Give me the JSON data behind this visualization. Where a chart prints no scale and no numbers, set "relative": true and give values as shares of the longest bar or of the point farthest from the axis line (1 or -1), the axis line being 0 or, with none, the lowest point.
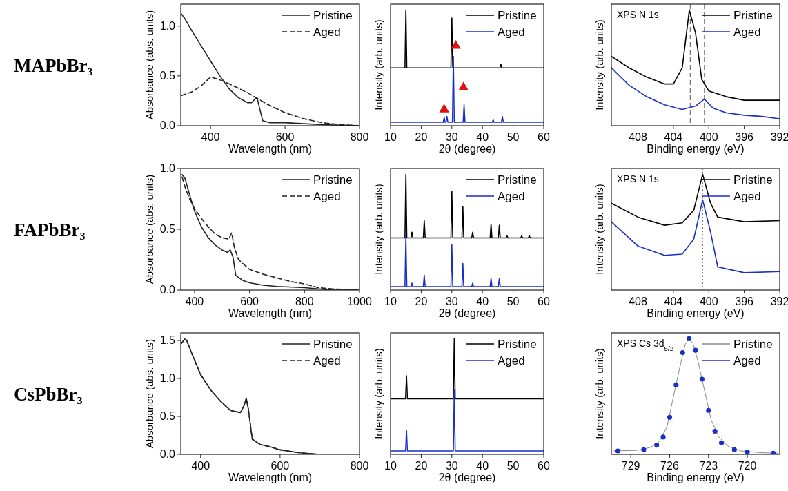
{
  "chart_data": [
    {
      "type": "line",
      "title": "MAPbBr₃",
      "xlabel": "Wavelength (nm)",
      "ylabel": "Absorbance (abs. units)",
      "xlim": [
        320,
        800
      ],
      "xticks": [
        400,
        600,
        800
      ],
      "ylim": [
        0,
        1.22
      ],
      "yticks": [
        {
          "value": 0,
          "label": "0.0"
        },
        {
          "value": 0.5,
          "label": "0.5"
        },
        {
          "value": 1,
          "label": "1.0"
        }
      ],
      "legend": "top right",
      "series": [
        {
          "name": "Pristine",
          "color": "#222222",
          "line_style": "solid",
          "x": [
            320,
            330,
            350,
            375,
            400,
            425,
            450,
            475,
            500,
            510,
            520,
            525,
            530,
            540,
            560,
            600,
            650,
            700,
            800
          ],
          "values": [
            1.13,
            1.08,
            0.95,
            0.8,
            0.65,
            0.5,
            0.37,
            0.28,
            0.23,
            0.23,
            0.27,
            0.28,
            0.2,
            0.05,
            0.03,
            0.03,
            0.02,
            0.01,
            0
          ]
        },
        {
          "name": "Aged",
          "color": "#222222",
          "line_style": "dashed",
          "x": [
            320,
            350,
            375,
            400,
            425,
            450,
            500,
            550,
            600,
            650,
            700,
            750,
            800
          ],
          "values": [
            0.3,
            0.34,
            0.4,
            0.49,
            0.46,
            0.42,
            0.33,
            0.22,
            0.13,
            0.07,
            0.03,
            0.01,
            0
          ]
        }
      ]
    },
    {
      "type": "line",
      "xlabel": "2θ (degree)",
      "ylabel": "Intensity (arb. units)",
      "xlim": [
        10,
        60
      ],
      "xticks": [
        10,
        20,
        30,
        40,
        50,
        60
      ],
      "relative": true,
      "tick_labels": "x",
      "legend": "top right",
      "series": [
        {
          "name": "Pristine",
          "color": "#000000",
          "x": [
            10,
            14.7,
            15,
            15.3,
            29.7,
            30,
            30.3,
            45.7,
            46,
            46.3,
            60
          ],
          "values": [
            0.5,
            0.5,
            1.0,
            0.5,
            0.5,
            0.93,
            0.5,
            0.5,
            0.53,
            0.5,
            0.5
          ]
        },
        {
          "name": "Aged",
          "color": "#1a2fc8",
          "x": [
            10,
            27.2,
            27.5,
            27.8,
            28.1,
            28.4,
            28.7,
            30.2,
            30.5,
            30.8,
            33.7,
            34,
            34.3,
            43.2,
            43.5,
            43.8,
            46.2,
            46.5,
            46.8,
            60
          ],
          "values": [
            0.03,
            0.03,
            0.07,
            0.03,
            0.03,
            0.08,
            0.03,
            0.03,
            0.6,
            0.03,
            0.03,
            0.18,
            0.03,
            0.03,
            0.05,
            0.03,
            0.03,
            0.08,
            0.03,
            0.03
          ]
        },
        {
          "type": "scatter",
          "marker": "triangle",
          "color": "#e01010",
          "x": [
            27.5,
            31.3,
            33.8
          ],
          "values": [
            0.14,
            0.69,
            0.33
          ]
        }
      ]
    },
    {
      "type": "line",
      "xlabel": "Binding energy (eV)",
      "ylabel": "Intensity (arb. units)",
      "xlim": [
        411,
        392
      ],
      "xticks": [
        408,
        404,
        400,
        396,
        392
      ],
      "relative": true,
      "tick_labels": "x",
      "legend": "top right",
      "annotations": [
        "XPS N 1s"
      ],
      "ref_lines": [
        {
          "axis": "x",
          "value": 402.1,
          "line_style": "dashed",
          "color": "#555555"
        },
        {
          "axis": "x",
          "value": 400.5,
          "line_style": "dashed",
          "color": "#555555"
        }
      ],
      "series": [
        {
          "name": "Pristine",
          "color": "#000000",
          "x": [
            411,
            409,
            407,
            405,
            404,
            403,
            402.2,
            401.5,
            400.8,
            400,
            398,
            396,
            394,
            392
          ],
          "values": [
            0.6,
            0.5,
            0.42,
            0.36,
            0.36,
            0.5,
            1.0,
            0.8,
            0.4,
            0.3,
            0.25,
            0.22,
            0.22,
            0.22
          ]
        },
        {
          "name": "Aged",
          "color": "#1a2fc8",
          "x": [
            411,
            409,
            407,
            405,
            403,
            401.5,
            400.5,
            399.5,
            398,
            396,
            394,
            392
          ],
          "values": [
            0.5,
            0.35,
            0.25,
            0.18,
            0.14,
            0.17,
            0.23,
            0.15,
            0.11,
            0.09,
            0.08,
            0.06
          ]
        }
      ]
    },
    {
      "type": "line",
      "title": "FAPbBr₃",
      "xlabel": "Wavelength (nm)",
      "ylabel": "Absorbance (abs. units)",
      "xlim": [
        350,
        1000
      ],
      "xticks": [
        400,
        600,
        800,
        1000
      ],
      "ylim": [
        0,
        1.0
      ],
      "yticks": [
        {
          "value": 0,
          "label": "0.0"
        },
        {
          "value": 0.5,
          "label": "0.5"
        },
        {
          "value": 1,
          "label": "1.0"
        }
      ],
      "legend": "top right",
      "series": [
        {
          "name": "Pristine",
          "color": "#222222",
          "line_style": "solid",
          "x": [
            355,
            365,
            380,
            400,
            425,
            450,
            475,
            500,
            520,
            530,
            540,
            550,
            575,
            600,
            650,
            700,
            800,
            850,
            900,
            1000
          ],
          "values": [
            0.95,
            0.92,
            0.8,
            0.65,
            0.52,
            0.43,
            0.37,
            0.33,
            0.31,
            0.33,
            0.27,
            0.12,
            0.08,
            0.06,
            0.04,
            0.03,
            0.02,
            0.01,
            0,
            0
          ]
        },
        {
          "name": "Aged",
          "color": "#222222",
          "line_style": "dashed",
          "x": [
            355,
            365,
            380,
            400,
            425,
            450,
            475,
            500,
            525,
            535,
            545,
            560,
            600,
            650,
            700,
            750,
            800,
            850,
            900,
            1000
          ],
          "values": [
            0.93,
            0.85,
            0.76,
            0.67,
            0.59,
            0.52,
            0.46,
            0.43,
            0.42,
            0.47,
            0.35,
            0.25,
            0.17,
            0.13,
            0.1,
            0.07,
            0.05,
            0.02,
            0.01,
            0
          ]
        }
      ]
    },
    {
      "type": "line",
      "xlabel": "2θ (degree)",
      "ylabel": "Intensity (arb. units)",
      "xlim": [
        10,
        60
      ],
      "xticks": [
        10,
        20,
        30,
        40,
        50,
        60
      ],
      "relative": true,
      "tick_labels": "x",
      "legend": "top right",
      "series": [
        {
          "name": "Pristine",
          "color": "#000000",
          "x": [
            10,
            14.7,
            15,
            15.3,
            16.7,
            17,
            17.3,
            20.7,
            21,
            21.3,
            29.7,
            30,
            30.3,
            33.3,
            33.6,
            33.9,
            36.5,
            36.8,
            37.1,
            42.5,
            42.8,
            43.1,
            45.2,
            45.5,
            45.8,
            47.7,
            48,
            48.3,
            52.5,
            52.8,
            53.1,
            55,
            55.3,
            55.6,
            60
          ],
          "values": [
            0.45,
            0.45,
            1.0,
            0.45,
            0.45,
            0.5,
            0.45,
            0.45,
            0.6,
            0.45,
            0.45,
            0.85,
            0.45,
            0.45,
            0.72,
            0.45,
            0.45,
            0.5,
            0.45,
            0.45,
            0.57,
            0.45,
            0.45,
            0.56,
            0.45,
            0.45,
            0.47,
            0.45,
            0.45,
            0.47,
            0.45,
            0.45,
            0.47,
            0.45,
            0.45
          ]
        },
        {
          "name": "Aged",
          "color": "#1a2fc8",
          "x": [
            10,
            14.7,
            15,
            15.3,
            16.7,
            17,
            17.3,
            20.7,
            21,
            21.3,
            29.7,
            30,
            30.3,
            33.3,
            33.6,
            33.9,
            36.5,
            36.8,
            37.1,
            42.5,
            42.8,
            43.1,
            45.2,
            45.5,
            45.8,
            60
          ],
          "values": [
            0.03,
            0.03,
            0.47,
            0.03,
            0.03,
            0.06,
            0.03,
            0.03,
            0.13,
            0.03,
            0.03,
            0.39,
            0.03,
            0.03,
            0.23,
            0.03,
            0.03,
            0.06,
            0.03,
            0.03,
            0.1,
            0.03,
            0.03,
            0.1,
            0.03,
            0.03
          ]
        }
      ]
    },
    {
      "type": "line",
      "xlabel": "Binding energy (eV)",
      "ylabel": "Intensity (arb. units)",
      "xlim": [
        411,
        392
      ],
      "xticks": [
        408,
        404,
        400,
        396,
        392
      ],
      "relative": true,
      "tick_labels": "x",
      "legend": "top right",
      "annotations": [
        "XPS N 1s"
      ],
      "ref_lines": [
        {
          "axis": "x",
          "value": 400.7,
          "line_style": "dotted",
          "color": "#555555"
        }
      ],
      "series": [
        {
          "name": "Pristine",
          "color": "#000000",
          "x": [
            411,
            408,
            405,
            403,
            401.7,
            400.7,
            399.8,
            399,
            396,
            392
          ],
          "values": [
            0.75,
            0.63,
            0.56,
            0.58,
            0.69,
            1.0,
            0.75,
            0.63,
            0.59,
            0.6
          ]
        },
        {
          "name": "Aged",
          "color": "#1a2fc8",
          "x": [
            411,
            408,
            405,
            403,
            401.7,
            400.7,
            399.8,
            399,
            396,
            392
          ],
          "values": [
            0.59,
            0.38,
            0.3,
            0.31,
            0.44,
            0.78,
            0.5,
            0.2,
            0.15,
            0.16
          ]
        }
      ]
    },
    {
      "type": "line",
      "title": "CsPbBr₃",
      "xlabel": "Wavelength (nm)",
      "ylabel": "Absorbance (abs. units)",
      "xlim": [
        350,
        800
      ],
      "xticks": [
        400,
        600,
        800
      ],
      "ylim": [
        0,
        1.6
      ],
      "yticks": [
        {
          "value": 0,
          "label": "0.0"
        },
        {
          "value": 0.5,
          "label": "0.5"
        },
        {
          "value": 1,
          "label": "1.0"
        },
        {
          "value": 1.5,
          "label": "1.5"
        }
      ],
      "legend": "top right",
      "series": [
        {
          "name": "Pristine",
          "color": "#222222",
          "line_style": "solid",
          "x": [
            350,
            360,
            365,
            380,
            400,
            425,
            450,
            475,
            500,
            510,
            515,
            520,
            530,
            550,
            575,
            600,
            650,
            700,
            800
          ],
          "values": [
            1.45,
            1.52,
            1.5,
            1.3,
            1.05,
            0.85,
            0.7,
            0.58,
            0.55,
            0.65,
            0.74,
            0.6,
            0.2,
            0.13,
            0.1,
            0.06,
            0.02,
            0,
            0
          ]
        },
        {
          "name": "Aged",
          "color": "#222222",
          "line_style": "dashed",
          "x": [
            350,
            360,
            365,
            380,
            400,
            425,
            450,
            475,
            500,
            510,
            515,
            520,
            530,
            550,
            575,
            600,
            650,
            700,
            800
          ],
          "values": [
            1.45,
            1.52,
            1.5,
            1.3,
            1.05,
            0.85,
            0.7,
            0.58,
            0.55,
            0.65,
            0.74,
            0.6,
            0.2,
            0.13,
            0.1,
            0.06,
            0.02,
            0,
            0
          ]
        }
      ]
    },
    {
      "type": "line",
      "xlabel": "2θ (degree)",
      "ylabel": "Intensity (arb. units)",
      "xlim": [
        10,
        60
      ],
      "xticks": [
        10,
        20,
        30,
        40,
        50,
        60
      ],
      "relative": true,
      "tick_labels": "x",
      "legend": "top right",
      "series": [
        {
          "name": "Pristine",
          "color": "#000000",
          "x": [
            10,
            14.9,
            15.2,
            15.5,
            30.5,
            30.8,
            31.1,
            60
          ],
          "values": [
            0.48,
            0.48,
            0.68,
            0.48,
            0.48,
            1.0,
            0.48,
            0.48
          ]
        },
        {
          "name": "Aged",
          "color": "#1a2fc8",
          "x": [
            10,
            14.9,
            15.2,
            15.5,
            30.5,
            30.8,
            31.1,
            60
          ],
          "values": [
            0.03,
            0.03,
            0.21,
            0.03,
            0.03,
            0.56,
            0.03,
            0.03
          ]
        }
      ]
    },
    {
      "type": "line",
      "xlabel": "Binding energy (eV)",
      "ylabel": "Intensity (arb. units)",
      "xlim": [
        730.5,
        717.5
      ],
      "xticks": [
        729,
        726,
        723,
        720
      ],
      "relative": true,
      "tick_labels": "x",
      "legend": "top right",
      "annotations": [
        "XPS Cs 3d$_{5/2}$"
      ],
      "series": [
        {
          "name": "Pristine",
          "color": "#888888",
          "x": [
            730.3,
            728.5,
            727.5,
            726.8,
            726.2,
            725.8,
            725.2,
            724.8,
            724.5,
            724.2,
            723.8,
            723.2,
            722.8,
            722.2,
            721.5,
            720.5,
            719,
            717.6
          ],
          "values": [
            0.03,
            0.035,
            0.06,
            0.11,
            0.24,
            0.45,
            0.76,
            0.95,
            1.0,
            0.96,
            0.8,
            0.5,
            0.3,
            0.15,
            0.07,
            0.03,
            0.015,
            0.01
          ]
        },
        {
          "name": "Aged",
          "type": "scatter",
          "color": "#1a2fc8",
          "marker": "circle",
          "x": [
            730,
            728,
            727,
            726.5,
            726,
            725.5,
            725,
            724.5,
            724,
            723.5,
            723,
            722.5,
            722,
            721,
            720,
            718
          ],
          "values": [
            0.03,
            0.04,
            0.08,
            0.15,
            0.32,
            0.6,
            0.88,
            1.0,
            0.9,
            0.65,
            0.38,
            0.2,
            0.1,
            0.04,
            0.02,
            0.01
          ]
        }
      ]
    }
  ]
}
